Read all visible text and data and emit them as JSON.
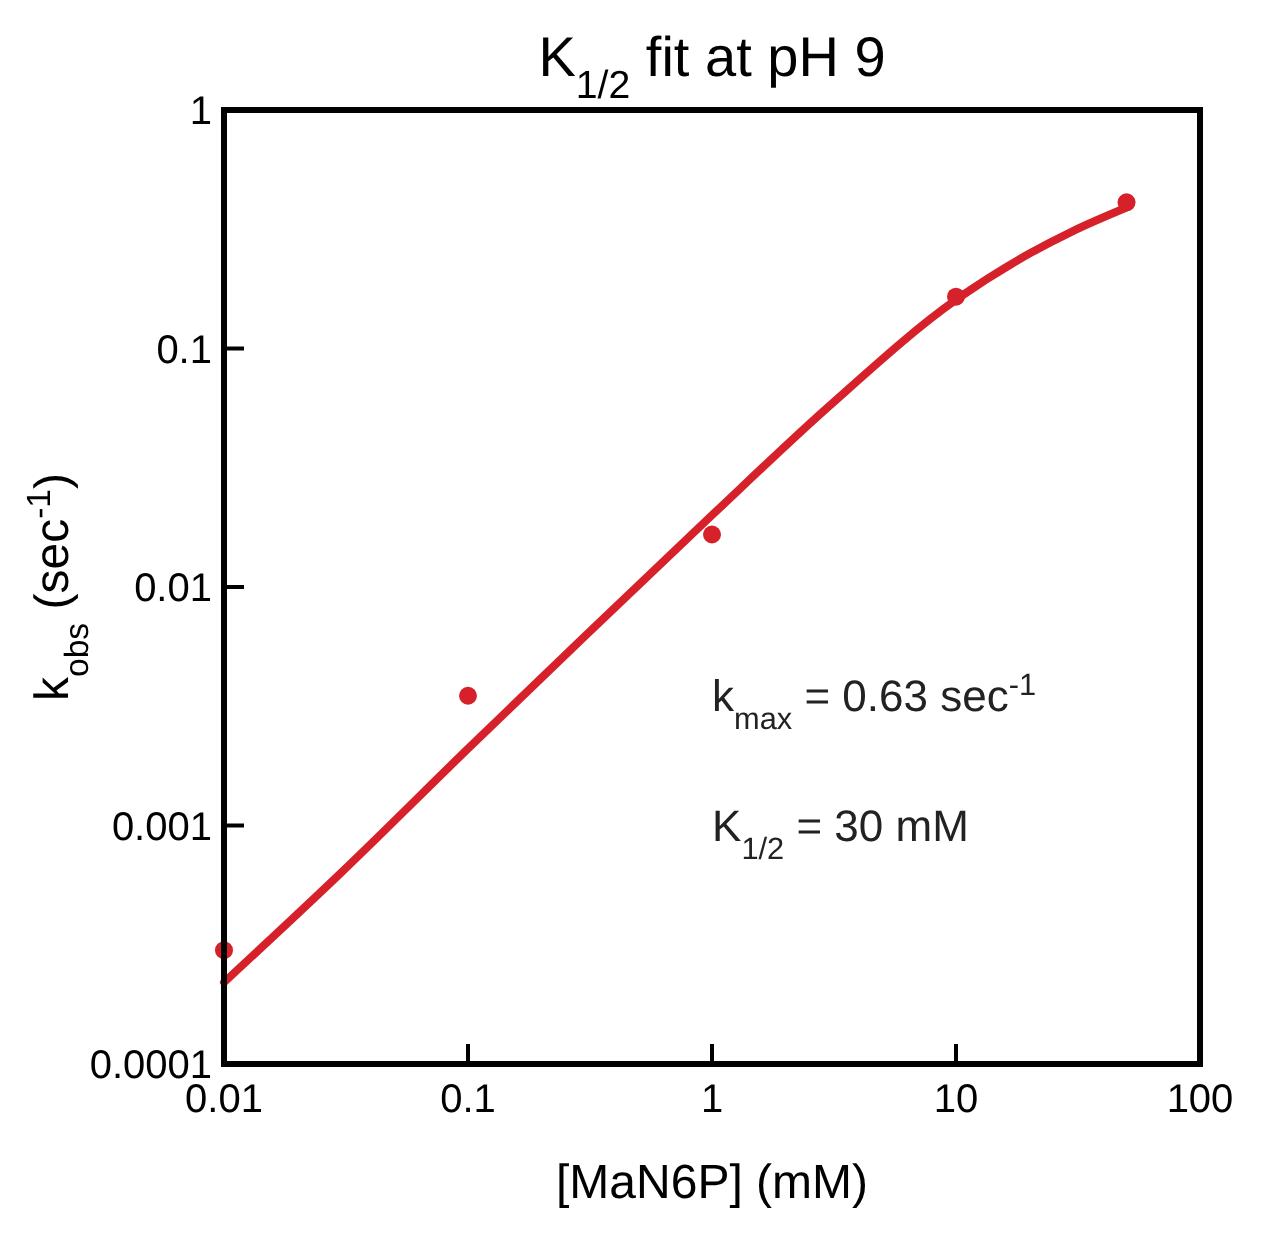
{
  "chart_data": {
    "type": "scatter",
    "title": "K$_{1/2}$ fit at pH 9",
    "xlabel": "[MaN6P] (mM)",
    "ylabel": "k$_{obs}$ (sec$^{-1}$)",
    "log": "xy",
    "xlim": [
      0.01,
      100
    ],
    "ylim": [
      0.0001,
      1
    ],
    "xticks": [
      0.01,
      0.1,
      1,
      10,
      100
    ],
    "yticks": [
      0.0001,
      0.001,
      0.01,
      0.1,
      1
    ],
    "grid": false,
    "marker": "circle",
    "series": [
      {
        "color": "#d7212a",
        "x": [
          0.01,
          0.1,
          1,
          10,
          50
        ],
        "values": [
          0.0003,
          0.0035,
          0.0166,
          0.165,
          0.41
        ]
      },
      {
        "type": "line",
        "color": "#d7212a",
        "line_style": "solid",
        "marker": "none",
        "x": [
          0.01,
          0.03,
          0.1,
          0.3,
          1,
          3,
          10,
          20,
          30,
          50
        ],
        "values": [
          0.00022,
          0.00063,
          0.0021,
          0.0062,
          0.02,
          0.057,
          0.16,
          0.25,
          0.31,
          0.39
        ]
      }
    ],
    "annotations": [
      "k$_{max}$ = 0.63 sec$^{-1}$",
      "K$_{1/2}$ = 30 mM"
    ]
  }
}
